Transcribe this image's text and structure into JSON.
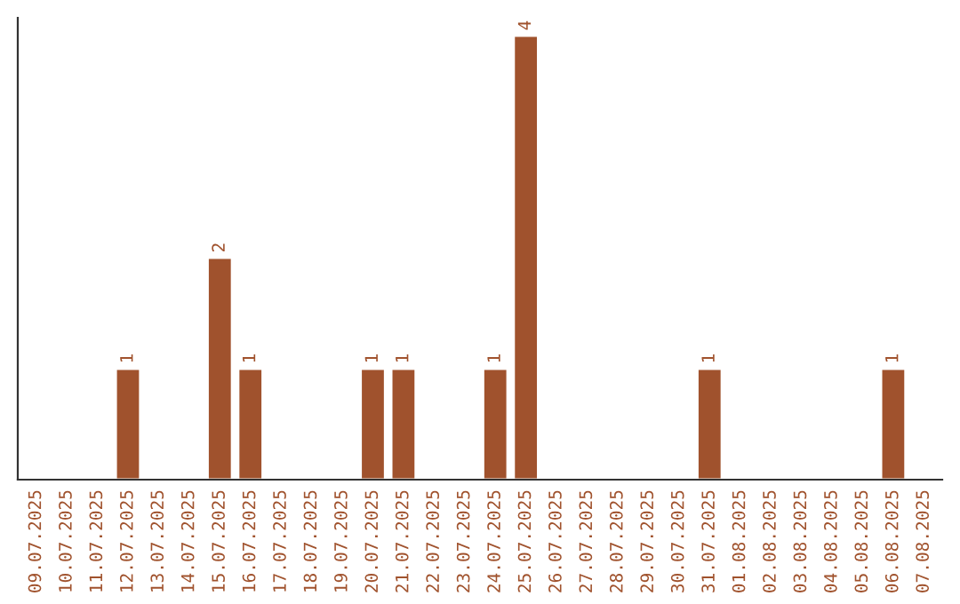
{
  "chart_data": {
    "type": "bar",
    "categories": [
      "09.07.2025",
      "10.07.2025",
      "11.07.2025",
      "12.07.2025",
      "13.07.2025",
      "14.07.2025",
      "15.07.2025",
      "16.07.2025",
      "17.07.2025",
      "18.07.2025",
      "19.07.2025",
      "20.07.2025",
      "21.07.2025",
      "22.07.2025",
      "23.07.2025",
      "24.07.2025",
      "25.07.2025",
      "26.07.2025",
      "27.07.2025",
      "28.07.2025",
      "29.07.2025",
      "30.07.2025",
      "31.07.2025",
      "01.08.2025",
      "02.08.2025",
      "03.08.2025",
      "04.08.2025",
      "05.08.2025",
      "06.08.2025",
      "07.08.2025"
    ],
    "values": [
      null,
      null,
      null,
      1,
      null,
      null,
      2,
      1,
      null,
      null,
      null,
      1,
      1,
      null,
      null,
      1,
      4,
      null,
      null,
      null,
      null,
      null,
      1,
      null,
      null,
      null,
      null,
      null,
      1,
      null
    ],
    "value_labels": [
      null,
      null,
      null,
      "1",
      null,
      null,
      "2",
      "1",
      null,
      null,
      null,
      "1",
      "1",
      null,
      null,
      "1",
      "4",
      null,
      null,
      null,
      null,
      null,
      "1",
      null,
      null,
      null,
      null,
      null,
      "1",
      null
    ],
    "color": "#a0522d",
    "tick_labels": "x",
    "grid": false,
    "legend": false
  }
}
